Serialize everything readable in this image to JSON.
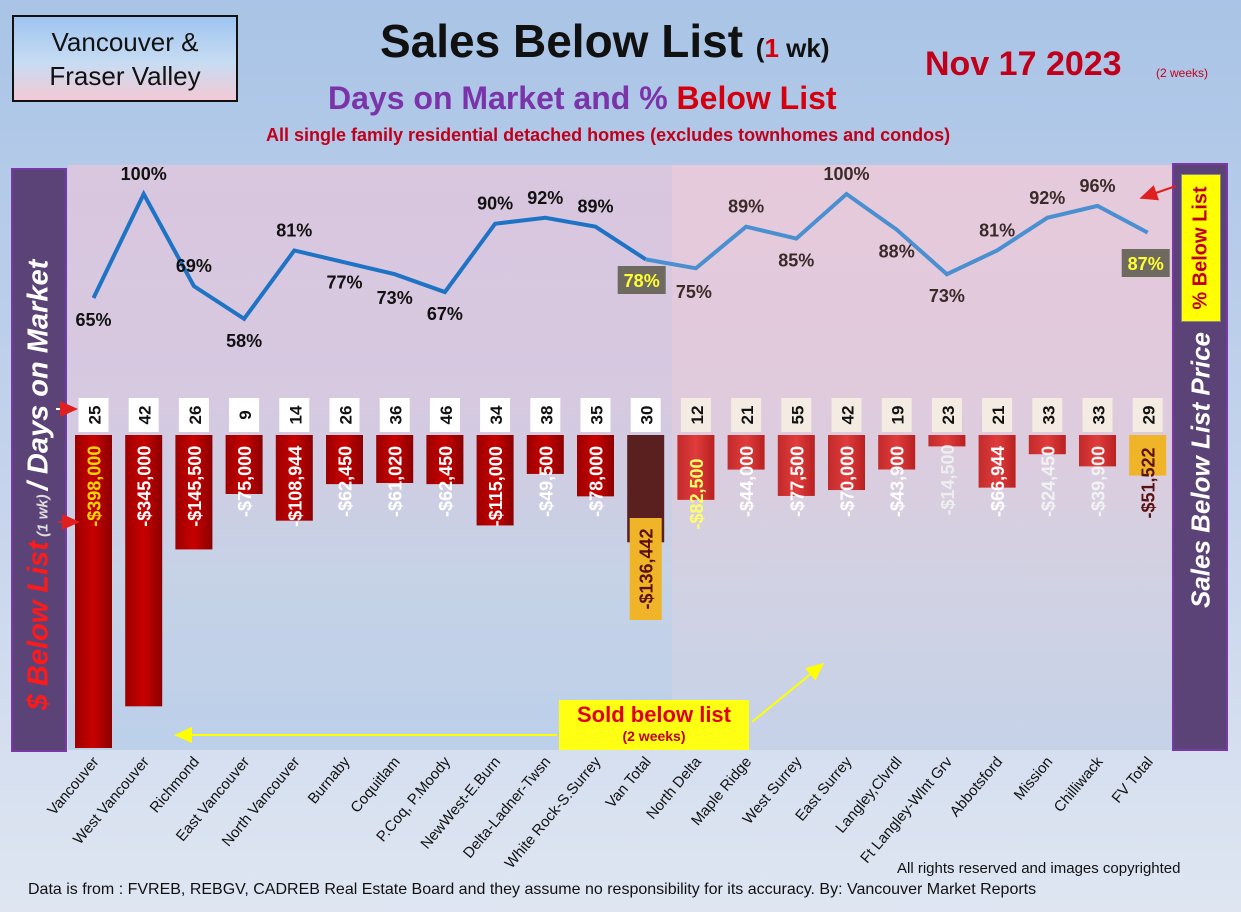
{
  "header": {
    "region": "Vancouver &\nFraser Valley",
    "title_main": "Sales Below List ",
    "title_paren_open": "(",
    "title_paren_num": "1",
    "title_paren_close": " wk)",
    "subtitle_part1": "Days on Market and % ",
    "subtitle_part2": "Below List",
    "subtitle2": "All single family residential detached homes (excludes townhomes and condos)",
    "date": "Nov 17  2023",
    "date_note": "(2 weeks)"
  },
  "side_labels": {
    "left_part1": "$ Below List",
    "left_part2": " (1 wk) ",
    "left_part3": "/ Days on Market",
    "right": "Sales Below List Price",
    "pct_badge": "% Below List"
  },
  "annotation": {
    "sold_main": "Sold below list",
    "sold_sub": "(2 weeks)"
  },
  "footer": {
    "rights": "All rights reserved and  images copyrighted",
    "source": "Data is from : FVREB, REBGV, CADREB Real Estate Board and they assume no responsibility for its accuracy. By: Vancouver Market Reports"
  },
  "colors": {
    "bar_van": "#c80000",
    "bar_fv": "#e03c3c",
    "bar_van_total": "#5a2020",
    "bar_fv_total": "#f0b429",
    "line": "#1f73c4",
    "line_fv": "#4a8fd0"
  },
  "chart_data": {
    "type": "bar",
    "categories": [
      "Vancouver",
      "West Vancouver",
      "Richmond",
      "East Vancouver",
      "North Vancouver",
      "Burnaby",
      "Coquitlam",
      "P.Coq, P.Moody",
      "NewWest-E.Burn",
      "Delta-Ladner-Twsn",
      "White Rock-S.Surrey",
      "Van Total",
      "North Delta",
      "Maple Ridge",
      "West Surrey",
      "East Surrey",
      "Langley,Clvrdl",
      "Ft Langley-Wlnt Grv",
      "Abbotsford",
      "Mission",
      "Chilliwack",
      "FV Total"
    ],
    "series": [
      {
        "name": "$ Below List",
        "type": "bar",
        "values": [
          -398000,
          -345000,
          -145500,
          -75000,
          -108944,
          -62450,
          -61020,
          -62450,
          -115000,
          -49500,
          -78000,
          -136442,
          -82500,
          -44000,
          -77500,
          -70000,
          -43900,
          -14500,
          -66944,
          -24450,
          -39900,
          -51522
        ],
        "labels": [
          "-$398,000",
          "-$345,000",
          "-$145,500",
          "-$75,000",
          "-$108,944",
          "-$62,450",
          "-$61,020",
          "-$62,450",
          "-$115,000",
          "-$49,500",
          "-$78,000",
          "-$136,442",
          "-$82,500",
          "-$44,000",
          "-$77,500",
          "-$70,000",
          "-$43,900",
          "-$14,500",
          "-$66,944",
          "-$24,450",
          "-$39,900",
          "-$51,522"
        ]
      },
      {
        "name": "% Below List",
        "type": "line",
        "values": [
          65,
          100,
          69,
          58,
          81,
          77,
          73,
          67,
          90,
          92,
          89,
          78,
          75,
          89,
          85,
          100,
          88,
          73,
          81,
          92,
          96,
          87
        ],
        "labels": [
          "65%",
          "100%",
          "69%",
          "58%",
          "81%",
          "77%",
          "73%",
          "67%",
          "90%",
          "92%",
          "89%",
          "78%",
          "75%",
          "89%",
          "85%",
          "100%",
          "88%",
          "73%",
          "81%",
          "92%",
          "96%",
          "87%"
        ]
      },
      {
        "name": "Days on Market",
        "type": "label",
        "values": [
          25,
          42,
          26,
          9,
          14,
          26,
          36,
          46,
          34,
          38,
          35,
          30,
          12,
          21,
          55,
          42,
          19,
          23,
          21,
          33,
          33,
          29
        ]
      }
    ],
    "grid": false
  }
}
